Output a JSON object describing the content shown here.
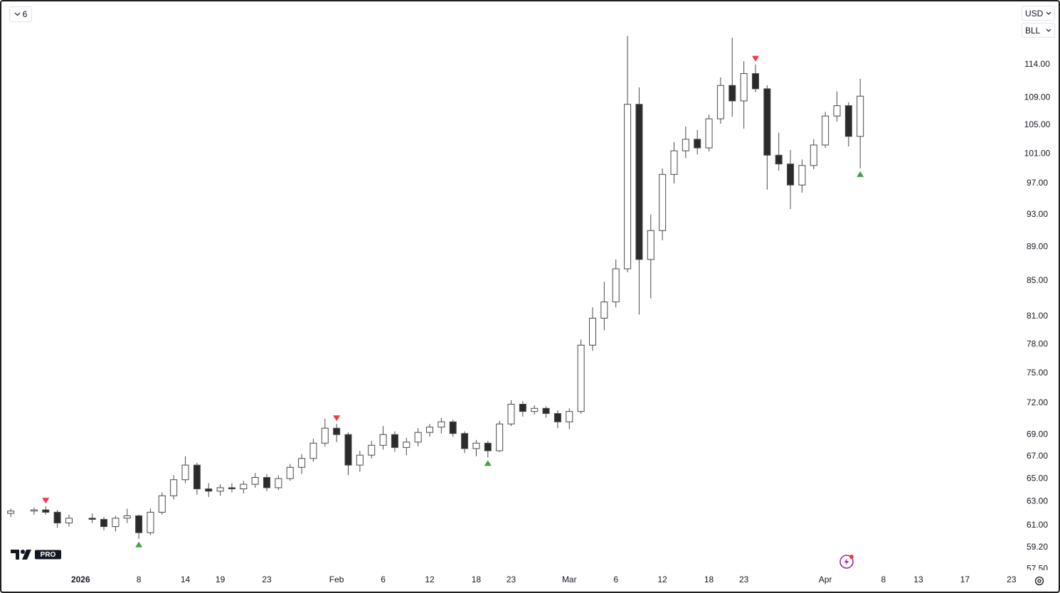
{
  "ui": {
    "interval": "6",
    "currency": "USD",
    "symbol": "BLL",
    "logo_badge": "PRO"
  },
  "chart_data": {
    "type": "candlestick",
    "y_scale": "log",
    "grid": false,
    "up_color": "#ffffff",
    "down_color": "#2a2a2a",
    "wick_color": "#4a4a4a",
    "x": [
      "2025-12-24",
      "2025-12-26",
      "2025-12-29",
      "2025-12-30",
      "2025-12-31",
      "2026-01-02",
      "2026-01-05",
      "2026-01-06",
      "2026-01-07",
      "2026-01-08",
      "2026-01-09",
      "2026-01-12",
      "2026-01-13",
      "2026-01-14",
      "2026-01-15",
      "2026-01-16",
      "2026-01-19",
      "2026-01-20",
      "2026-01-21",
      "2026-01-22",
      "2026-01-23",
      "2026-01-26",
      "2026-01-27",
      "2026-01-28",
      "2026-01-29",
      "2026-01-30",
      "2026-02-02",
      "2026-02-03",
      "2026-02-04",
      "2026-02-05",
      "2026-02-06",
      "2026-02-09",
      "2026-02-10",
      "2026-02-11",
      "2026-02-12",
      "2026-02-13",
      "2026-02-16",
      "2026-02-17",
      "2026-02-18",
      "2026-02-19",
      "2026-02-20",
      "2026-02-23",
      "2026-02-24",
      "2026-02-25",
      "2026-02-26",
      "2026-02-27",
      "2026-03-02",
      "2026-03-03",
      "2026-03-04",
      "2026-03-05",
      "2026-03-06",
      "2026-03-09",
      "2026-03-10",
      "2026-03-11",
      "2026-03-12",
      "2026-03-13",
      "2026-03-16",
      "2026-03-17",
      "2026-03-18",
      "2026-03-19",
      "2026-03-20",
      "2026-03-23",
      "2026-03-24",
      "2026-03-25",
      "2026-03-26",
      "2026-03-27",
      "2026-03-30",
      "2026-03-31",
      "2026-04-01",
      "2026-04-02",
      "2026-04-03",
      "2026-04-06"
    ],
    "open": [
      62.0,
      62.2,
      62.3,
      62.1,
      61.2,
      61.6,
      61.5,
      60.9,
      61.6,
      61.8,
      60.4,
      62.1,
      63.5,
      64.9,
      66.2,
      64.1,
      63.9,
      64.2,
      64.1,
      64.5,
      65.1,
      64.2,
      65.0,
      66.0,
      66.8,
      68.2,
      69.6,
      69.0,
      66.2,
      67.1,
      68.0,
      69.0,
      67.8,
      68.3,
      69.2,
      69.7,
      70.2,
      69.1,
      67.7,
      68.2,
      67.5,
      70.0,
      71.9,
      71.2,
      71.5,
      71.0,
      70.2,
      71.2,
      77.9,
      80.8,
      82.6,
      86.4,
      108.0,
      87.5,
      91.0,
      98.2,
      101.4,
      103.0,
      101.8,
      105.9,
      110.8,
      108.5,
      112.6,
      110.3,
      100.8,
      99.6,
      96.8,
      99.4,
      102.2,
      106.3,
      107.8,
      103.4
    ],
    "high": [
      62.4,
      62.5,
      62.6,
      62.3,
      61.9,
      62.0,
      61.7,
      61.8,
      62.4,
      61.9,
      62.4,
      63.8,
      65.3,
      67.0,
      66.4,
      64.6,
      64.5,
      64.6,
      64.8,
      65.5,
      65.4,
      65.3,
      66.3,
      67.2,
      68.6,
      70.5,
      70.0,
      69.2,
      67.5,
      68.4,
      69.8,
      69.3,
      68.7,
      69.6,
      70.0,
      70.6,
      70.4,
      69.3,
      68.5,
      68.4,
      70.3,
      72.3,
      72.2,
      71.8,
      71.7,
      71.3,
      71.5,
      78.5,
      82.0,
      84.9,
      87.5,
      118.5,
      110.5,
      93.0,
      99.0,
      102.6,
      104.8,
      104.3,
      106.5,
      112.0,
      118.2,
      114.5,
      114.0,
      110.8,
      103.9,
      101.5,
      100.2,
      103.0,
      106.9,
      109.9,
      108.3,
      111.8
    ],
    "low": [
      61.7,
      61.9,
      61.9,
      60.8,
      60.9,
      61.2,
      60.6,
      60.5,
      61.2,
      59.9,
      60.2,
      61.9,
      63.2,
      64.6,
      63.6,
      63.4,
      63.5,
      63.8,
      63.7,
      64.2,
      63.9,
      64.0,
      64.8,
      65.4,
      66.5,
      67.9,
      68.3,
      65.3,
      65.6,
      66.8,
      67.6,
      67.4,
      67.1,
      67.9,
      68.8,
      69.1,
      68.8,
      67.3,
      67.0,
      66.9,
      67.4,
      69.8,
      70.7,
      70.9,
      70.6,
      69.6,
      69.5,
      71.0,
      77.3,
      79.5,
      82.0,
      86.0,
      81.2,
      83.0,
      89.8,
      97.0,
      100.4,
      100.9,
      101.3,
      105.2,
      106.2,
      104.5,
      109.8,
      96.2,
      98.7,
      93.7,
      95.8,
      98.9,
      101.8,
      105.5,
      102.0,
      99.0
    ],
    "close": [
      62.2,
      62.3,
      62.1,
      61.2,
      61.6,
      61.5,
      60.9,
      61.6,
      61.8,
      60.4,
      62.1,
      63.5,
      64.9,
      66.2,
      64.1,
      63.9,
      64.2,
      64.1,
      64.5,
      65.1,
      64.2,
      65.0,
      66.0,
      66.8,
      68.2,
      69.6,
      69.0,
      66.2,
      67.1,
      68.0,
      69.0,
      67.8,
      68.3,
      69.2,
      69.7,
      70.2,
      69.1,
      67.7,
      68.2,
      67.5,
      70.0,
      71.9,
      71.2,
      71.5,
      71.0,
      70.2,
      71.2,
      77.9,
      80.8,
      82.6,
      86.4,
      108.0,
      87.5,
      91.0,
      98.2,
      101.4,
      103.0,
      101.8,
      105.9,
      110.8,
      108.5,
      112.6,
      110.3,
      100.8,
      99.6,
      96.8,
      99.4,
      102.2,
      106.3,
      107.8,
      103.4,
      109.2
    ],
    "signals": {
      "buy": [
        "2026-01-08",
        "2026-02-19",
        "2026-04-06"
      ],
      "sell": [
        "2025-12-29",
        "2026-02-02",
        "2026-03-24"
      ]
    },
    "buy_color": "#43a047",
    "sell_color": "#f23645",
    "xlim": [
      "2025-12-24",
      "2026-04-24"
    ],
    "xticks": [
      {
        "value": "2026",
        "label": "2026"
      },
      {
        "value": "2026-01-08",
        "label": "8"
      },
      {
        "value": "2026-01-14",
        "label": "14"
      },
      {
        "value": "2026-01-19",
        "label": "19"
      },
      {
        "value": "2026-01-23",
        "label": "23"
      },
      {
        "value": "2026-02",
        "label": "Feb"
      },
      {
        "value": "2026-02-06",
        "label": "6"
      },
      {
        "value": "2026-02-12",
        "label": "12"
      },
      {
        "value": "2026-02-18",
        "label": "18"
      },
      {
        "value": "2026-02-23",
        "label": "23"
      },
      {
        "value": "2026-03",
        "label": "Mar"
      },
      {
        "value": "2026-03-06",
        "label": "6"
      },
      {
        "value": "2026-03-12",
        "label": "12"
      },
      {
        "value": "2026-03-18",
        "label": "18"
      },
      {
        "value": "2026-03-23",
        "label": "23"
      },
      {
        "value": "2026-04",
        "label": "Apr"
      },
      {
        "value": "2026-04-08",
        "label": "8"
      },
      {
        "value": "2026-04-13",
        "label": "13"
      },
      {
        "value": "2026-04-17",
        "label": "17"
      },
      {
        "value": "2026-04-23",
        "label": "23"
      }
    ],
    "ylim": [
      57.4,
      123.7
    ],
    "yticks": [
      {
        "value": 57.5,
        "label": "57.50"
      },
      {
        "value": 59.2,
        "label": "59.20"
      },
      {
        "value": 61,
        "label": "61.00"
      },
      {
        "value": 63,
        "label": "63.00"
      },
      {
        "value": 65,
        "label": "65.00"
      },
      {
        "value": 67,
        "label": "67.00"
      },
      {
        "value": 69,
        "label": "69.00"
      },
      {
        "value": 72,
        "label": "72.00"
      },
      {
        "value": 75,
        "label": "75.00"
      },
      {
        "value": 78,
        "label": "78.00"
      },
      {
        "value": 81,
        "label": "81.00"
      },
      {
        "value": 85,
        "label": "85.00"
      },
      {
        "value": 89,
        "label": "89.00"
      },
      {
        "value": 93,
        "label": "93.00"
      },
      {
        "value": 97,
        "label": "97.00"
      },
      {
        "value": 101,
        "label": "101.00"
      },
      {
        "value": 105,
        "label": "105.00"
      },
      {
        "value": 109,
        "label": "109.00"
      },
      {
        "value": 114,
        "label": "114.00"
      }
    ]
  }
}
